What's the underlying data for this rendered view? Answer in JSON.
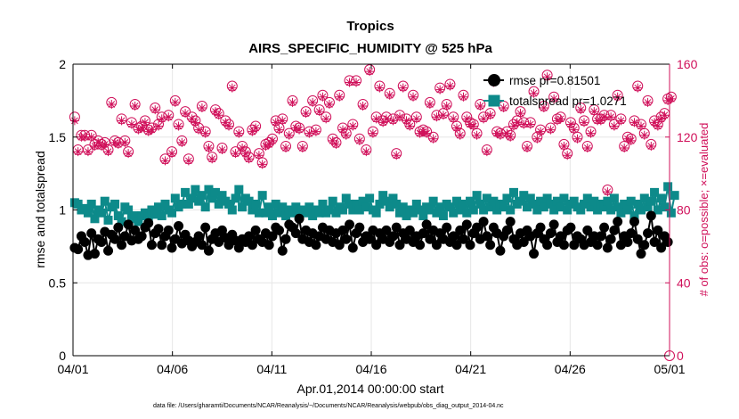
{
  "chart_data": {
    "type": "line",
    "title": "Tropics",
    "subtitle": "AIRS_SPECIFIC_HUMIDITY @ 525 hPa",
    "xlabel": "Apr.01,2014 00:00:00 start",
    "ylabel": "rmse and totalspread",
    "y2label": "# of obs: o=possible; ×=evaluated",
    "footer": "data file: /Users/gharamti/Documents/NCAR/Reanalysis/~/Documents/NCAR/Reanalysis/webpub/obs_diag_output_2014-04.nc",
    "xlim": [
      0,
      30
    ],
    "ylim": [
      0,
      2
    ],
    "y2lim": [
      0,
      160
    ],
    "x_tick_labels": [
      "04/01",
      "04/06",
      "04/11",
      "04/16",
      "04/21",
      "04/26",
      "05/01"
    ],
    "y_tick_labels": [
      "0",
      "0.5",
      "1",
      "1.5",
      "2"
    ],
    "y2_tick_labels": [
      "0",
      "40",
      "80",
      "120",
      "160"
    ],
    "colors": {
      "rmse": "#000000",
      "spread": "#0d8a8a",
      "obs": "#d0105a",
      "grid": "#e6e6e6"
    },
    "legend": [
      {
        "label": "rmse pr=0.81501"
      },
      {
        "label": "totalspread pr=1.0271"
      }
    ],
    "series": [
      {
        "name": "rmse",
        "values": [
          0.74,
          0.73,
          0.82,
          0.78,
          0.69,
          0.84,
          0.7,
          0.8,
          0.78,
          0.85,
          0.72,
          0.83,
          0.8,
          0.88,
          0.76,
          0.82,
          0.9,
          0.79,
          0.86,
          0.8,
          0.82,
          0.88,
          0.91,
          0.76,
          0.84,
          0.87,
          0.76,
          0.82,
          0.86,
          0.74,
          0.8,
          0.89,
          0.77,
          0.83,
          0.79,
          0.75,
          0.78,
          0.82,
          0.76,
          0.88,
          0.72,
          0.8,
          0.84,
          0.78,
          0.86,
          0.81,
          0.76,
          0.83,
          0.79,
          0.74,
          0.8,
          0.78,
          0.82,
          0.76,
          0.86,
          0.8,
          0.78,
          0.84,
          0.76,
          0.82,
          0.88,
          0.86,
          0.72,
          0.8,
          0.9,
          0.88,
          0.84,
          0.94,
          0.8,
          0.86,
          0.78,
          0.84,
          0.76,
          0.82,
          0.88,
          0.8,
          0.86,
          0.78,
          0.84,
          0.76,
          0.86,
          0.8,
          0.9,
          0.74,
          0.84,
          0.88,
          0.78,
          0.82,
          0.8,
          0.86,
          0.76,
          0.84,
          0.8,
          0.86,
          0.78,
          0.82,
          0.88,
          0.76,
          0.84,
          0.8,
          0.86,
          0.78,
          0.82,
          0.76,
          0.84,
          0.9,
          0.8,
          0.86,
          0.76,
          0.84,
          0.8,
          0.88,
          0.78,
          0.82,
          0.76,
          0.86,
          0.8,
          0.9,
          0.76,
          0.84,
          0.88,
          0.8,
          0.92,
          0.82,
          0.76,
          0.88,
          0.84,
          0.72,
          0.82,
          0.86,
          0.92,
          0.8,
          0.76,
          0.84,
          0.78,
          0.86,
          0.82,
          0.7,
          0.84,
          0.88,
          0.8,
          0.76,
          0.84,
          0.9,
          0.78,
          0.82,
          0.76,
          0.86,
          0.88,
          0.76,
          0.82,
          0.8,
          0.76,
          0.86,
          0.78,
          0.82,
          0.76,
          0.82,
          0.88,
          0.74,
          0.8,
          0.86,
          0.92,
          0.76,
          0.82,
          0.78,
          0.84,
          0.92,
          0.8,
          0.7,
          0.76,
          0.84,
          0.96,
          0.78,
          0.86,
          0.74,
          0.82,
          0.78
        ]
      },
      {
        "name": "totalspread",
        "values": [
          1.05,
          1.04,
          1.0,
          1.01,
          0.98,
          1.04,
          0.94,
          1.0,
          0.98,
          1.06,
          0.93,
          1.02,
          1.04,
          0.96,
          0.92,
          1.02,
          1.0,
          0.94,
          0.96,
          0.92,
          0.96,
          0.98,
          0.95,
          1.0,
          0.97,
          1.02,
          0.96,
          1.04,
          1.0,
          0.98,
          1.08,
          1.02,
          1.04,
          1.12,
          1.04,
          1.08,
          1.14,
          1.06,
          1.1,
          1.02,
          1.14,
          1.08,
          1.12,
          1.04,
          1.1,
          1.06,
          1.04,
          1.0,
          1.08,
          1.14,
          1.02,
          1.08,
          1.06,
          1.0,
          1.04,
          0.98,
          1.1,
          0.98,
          1.02,
          0.96,
          1.04,
          0.98,
          1.02,
          0.96,
          1.0,
          0.98,
          1.02,
          0.96,
          1.0,
          0.98,
          1.02,
          0.96,
          1.0,
          0.98,
          1.04,
          0.98,
          1.0,
          1.06,
          0.98,
          1.02,
          1.0,
          1.08,
          1.04,
          1.0,
          1.04,
          1.0,
          1.06,
          1.02,
          1.08,
          1.0,
          0.98,
          1.04,
          1.1,
          1.06,
          1.02,
          1.08,
          1.04,
          0.98,
          1.02,
          0.96,
          1.0,
          0.98,
          1.04,
          1.0,
          0.96,
          1.02,
          1.0,
          1.06,
          0.98,
          1.02,
          0.96,
          1.04,
          1.02,
          0.98,
          1.06,
          1.0,
          1.04,
          0.98,
          1.06,
          1.0,
          1.1,
          1.04,
          1.0,
          1.08,
          1.02,
          1.06,
          1.0,
          1.04,
          1.02,
          1.08,
          1.0,
          1.12,
          1.04,
          1.06,
          1.1,
          1.02,
          1.08,
          1.04,
          1.0,
          1.06,
          1.02,
          1.08,
          1.04,
          1.0,
          1.06,
          1.02,
          1.08,
          1.0,
          1.04,
          1.06,
          1.02,
          1.0,
          1.04,
          1.08,
          1.02,
          1.06,
          1.0,
          1.04,
          1.02,
          1.06,
          1.0,
          1.08,
          1.02,
          0.98,
          1.04,
          1.0,
          1.06,
          0.96,
          1.04,
          1.0,
          1.08,
          1.02,
          1.06,
          1.12,
          1.0,
          1.08,
          1.02,
          1.16,
          0.98,
          1.1
        ]
      },
      {
        "name": "possible_obs",
        "values": [
          131,
          113,
          121,
          121,
          113,
          121,
          116,
          118,
          116,
          117,
          113,
          139,
          118,
          117,
          130,
          118,
          112,
          128,
          138,
          125,
          126,
          129,
          124,
          125,
          136,
          127,
          131,
          108,
          132,
          112,
          140,
          127,
          118,
          134,
          108,
          131,
          129,
          125,
          137,
          123,
          115,
          109,
          135,
          133,
          114,
          129,
          127,
          148,
          112,
          123,
          115,
          112,
          109,
          124,
          126,
          111,
          106,
          116,
          117,
          119,
          129,
          125,
          130,
          115,
          122,
          140,
          126,
          125,
          115,
          134,
          123,
          140,
          124,
          135,
          143,
          131,
          139,
          119,
          117,
          143,
          125,
          122,
          151,
          127,
          151,
          119,
          138,
          113,
          157,
          123,
          131,
          148,
          129,
          131,
          144,
          130,
          111,
          132,
          148,
          130,
          127,
          143,
          131,
          123,
          124,
          123,
          139,
          120,
          132,
          147,
          133,
          138,
          149,
          131,
          126,
          122,
          143,
          131,
          128,
          127,
          122,
          138,
          131,
          113,
          133,
          151,
          123,
          122,
          137,
          123,
          121,
          127,
          129,
          134,
          128,
          115,
          128,
          145,
          120,
          124,
          137,
          154,
          125,
          142,
          130,
          131,
          116,
          111,
          128,
          125,
          120,
          136,
          129,
          115,
          123,
          135,
          130,
          130,
          132,
          91,
          132,
          127,
          143,
          130,
          115,
          120,
          119,
          129,
          148,
          127,
          122,
          140,
          116,
          129,
          127,
          131,
          133,
          141,
          142
        ]
      },
      {
        "name": "evaluated_obs",
        "values": [
          129,
          112,
          120,
          120,
          112,
          120,
          115,
          117,
          115,
          116,
          112,
          138,
          117,
          116,
          129,
          117,
          111,
          127,
          137,
          124,
          125,
          128,
          123,
          124,
          135,
          126,
          130,
          107,
          131,
          111,
          139,
          126,
          117,
          133,
          107,
          130,
          128,
          124,
          136,
          122,
          114,
          108,
          134,
          132,
          113,
          128,
          126,
          147,
          111,
          122,
          114,
          111,
          108,
          123,
          125,
          110,
          105,
          115,
          116,
          118,
          128,
          124,
          129,
          114,
          121,
          139,
          125,
          124,
          114,
          133,
          122,
          139,
          123,
          134,
          142,
          130,
          138,
          118,
          116,
          142,
          124,
          121,
          150,
          126,
          150,
          118,
          137,
          112,
          156,
          122,
          130,
          147,
          128,
          130,
          143,
          129,
          110,
          131,
          147,
          129,
          126,
          142,
          130,
          122,
          123,
          122,
          138,
          119,
          131,
          146,
          132,
          137,
          148,
          130,
          125,
          121,
          142,
          130,
          127,
          126,
          121,
          137,
          130,
          112,
          132,
          150,
          122,
          121,
          136,
          122,
          120,
          126,
          128,
          133,
          127,
          114,
          127,
          144,
          119,
          123,
          136,
          153,
          124,
          141,
          129,
          130,
          115,
          110,
          127,
          124,
          119,
          135,
          128,
          114,
          122,
          134,
          129,
          129,
          131,
          90,
          131,
          126,
          142,
          129,
          114,
          119,
          118,
          128,
          147,
          126,
          121,
          139,
          115,
          128,
          126,
          130,
          132,
          140,
          141
        ]
      }
    ]
  }
}
